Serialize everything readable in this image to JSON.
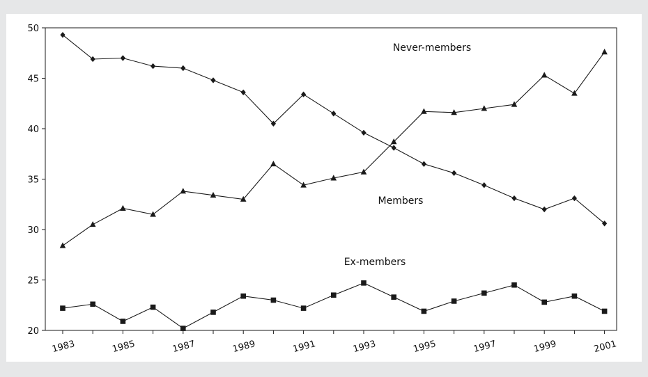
{
  "chart_data": {
    "type": "line",
    "title": "",
    "xlabel": "",
    "ylabel": "",
    "x": [
      1983,
      1984,
      1985,
      1986,
      1987,
      1988,
      1989,
      1990,
      1991,
      1992,
      1993,
      1994,
      1995,
      1996,
      1997,
      1998,
      1999,
      2000,
      2001
    ],
    "x_tick_labels": [
      "1983",
      "1985",
      "1987",
      "1989",
      "1991",
      "1993",
      "1995",
      "1997",
      "1999",
      "2001"
    ],
    "y_tick_labels": [
      "50",
      "45",
      "40",
      "35",
      "30",
      "25",
      "20"
    ],
    "ylim": [
      20,
      50
    ],
    "grid": false,
    "series": [
      {
        "name": "Never-members",
        "marker": "diamond",
        "values": [
          49.3,
          46.9,
          47.0,
          46.2,
          46.0,
          44.8,
          43.6,
          40.5,
          43.4,
          41.5,
          39.6,
          38.1,
          36.5,
          35.6,
          34.4,
          33.1,
          32.0,
          33.1,
          30.6
        ]
      },
      {
        "name": "Members",
        "marker": "triangle",
        "values": [
          28.4,
          30.5,
          32.1,
          31.5,
          33.8,
          33.4,
          33.0,
          36.5,
          34.4,
          35.1,
          35.7,
          38.7,
          41.7,
          41.6,
          42.0,
          42.4,
          45.3,
          43.5,
          47.6
        ]
      },
      {
        "name": "Ex-members",
        "marker": "square",
        "values": [
          22.2,
          22.6,
          20.9,
          22.3,
          20.2,
          21.8,
          23.4,
          23.0,
          22.2,
          23.5,
          24.7,
          23.3,
          21.9,
          22.9,
          23.7,
          24.5,
          22.8,
          23.4,
          21.9
        ]
      }
    ]
  }
}
